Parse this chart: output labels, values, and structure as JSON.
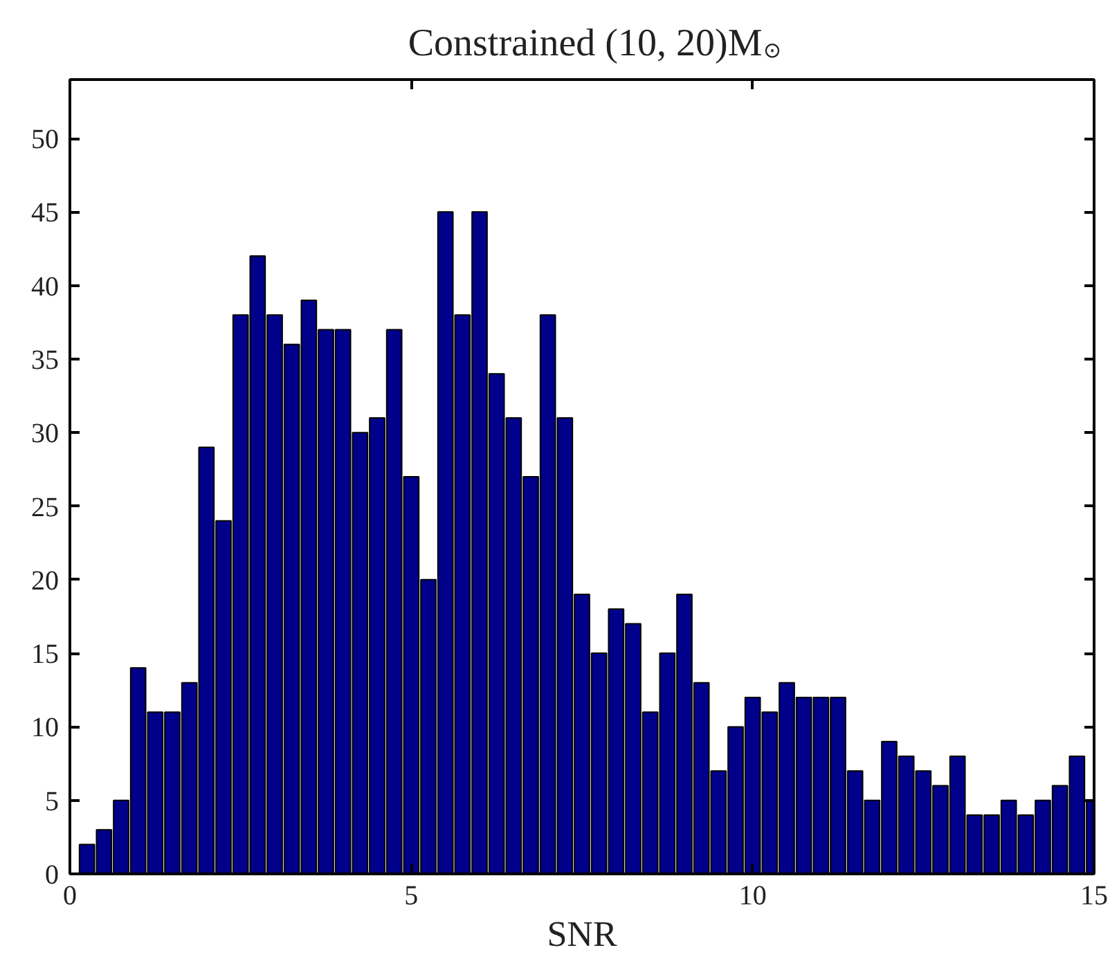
{
  "chart_data": {
    "type": "histogram",
    "title": "Constrained (10, 20)M$_{⊙}$",
    "xlabel": "SNR",
    "bins": [
      0.125,
      0.375,
      0.625,
      0.875,
      1.125,
      1.375,
      1.625,
      1.875,
      2.125,
      2.375,
      2.625,
      2.875,
      3.125,
      3.375,
      3.625,
      3.875,
      4.125,
      4.375,
      4.625,
      4.875,
      5.125,
      5.375,
      5.625,
      5.875,
      6.125,
      6.375,
      6.625,
      6.875,
      7.125,
      7.375,
      7.625,
      7.875,
      8.125,
      8.375,
      8.625,
      8.875,
      9.125,
      9.375,
      9.625,
      9.875,
      10.125,
      10.375,
      10.625,
      10.875,
      11.125,
      11.375,
      11.625,
      11.875,
      12.125,
      12.375,
      12.625,
      12.875,
      13.125,
      13.375,
      13.625,
      13.875,
      14.125,
      14.375,
      14.625,
      14.875,
      15.125
    ],
    "values": [
      2,
      3,
      5,
      14,
      11,
      11,
      13,
      29,
      24,
      38,
      42,
      38,
      36,
      39,
      37,
      37,
      30,
      31,
      37,
      27,
      20,
      45,
      38,
      45,
      34,
      31,
      27,
      38,
      31,
      19,
      15,
      18,
      17,
      11,
      15,
      19,
      13,
      7,
      10,
      12,
      11,
      13,
      12,
      12,
      12,
      7,
      5,
      9,
      8,
      7,
      6,
      8,
      4,
      4,
      5,
      4,
      5,
      6,
      8,
      5
    ],
    "color": "#00008b",
    "xlim": [
      0,
      15
    ],
    "ylim": [
      0,
      54
    ],
    "xticks": [
      0,
      5,
      10,
      15
    ],
    "yticks": [
      0,
      5,
      10,
      15,
      20,
      25,
      30,
      35,
      40,
      45,
      50
    ]
  }
}
